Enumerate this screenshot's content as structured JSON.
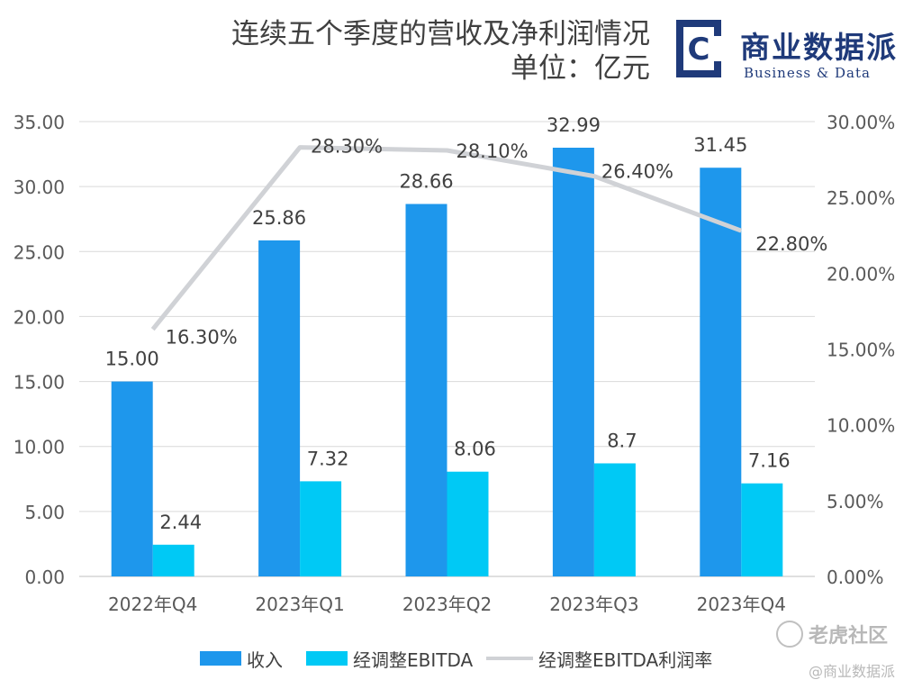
{
  "header": {
    "title_line1": "连续五个季度的营收及净利润情况",
    "title_line2": "单位：亿元"
  },
  "brand": {
    "logo_letter": "C",
    "name_cn": "商业数据派",
    "name_en": "Business & Data"
  },
  "watermarks": {
    "tiger_site": "老虎社区",
    "handle": "@商业数据派"
  },
  "colors": {
    "revenue": "#1e97ec",
    "ebitda": "#00c9f5",
    "margin": "#d0d2d6",
    "axis_text": "#595959",
    "grid": "#d9d9d9",
    "brand": "#1f3a7a"
  },
  "chart_data": {
    "type": "bar",
    "categories": [
      "2022年Q4",
      "2023年Q1",
      "2023年Q2",
      "2023年Q3",
      "2023年Q4"
    ],
    "series": [
      {
        "name": "收入",
        "kind": "bar",
        "axis": "left",
        "values": [
          15.0,
          25.86,
          28.66,
          32.99,
          31.45
        ],
        "labels": [
          "15.00",
          "25.86",
          "28.66",
          "32.99",
          "31.45"
        ]
      },
      {
        "name": "经调整EBITDA",
        "kind": "bar",
        "axis": "left",
        "values": [
          2.44,
          7.32,
          8.06,
          8.7,
          7.16
        ],
        "labels": [
          "2.44",
          "7.32",
          "8.06",
          "8.7",
          "7.16"
        ]
      },
      {
        "name": "经调整EBITDA利润率",
        "kind": "line",
        "axis": "right",
        "values": [
          16.3,
          28.3,
          28.1,
          26.4,
          22.8
        ],
        "labels": [
          "16.30%",
          "28.30%",
          "28.10%",
          "26.40%",
          "22.80%"
        ]
      }
    ],
    "y_left": {
      "min": 0,
      "max": 35,
      "step": 5,
      "ticks": [
        "0.00",
        "5.00",
        "10.00",
        "15.00",
        "20.00",
        "25.00",
        "30.00",
        "35.00"
      ]
    },
    "y_right": {
      "min": 0,
      "max": 30,
      "step": 5,
      "ticks": [
        "0.00%",
        "5.00%",
        "10.00%",
        "15.00%",
        "20.00%",
        "25.00%",
        "30.00%"
      ]
    },
    "grid": true,
    "legend": "bottom"
  }
}
